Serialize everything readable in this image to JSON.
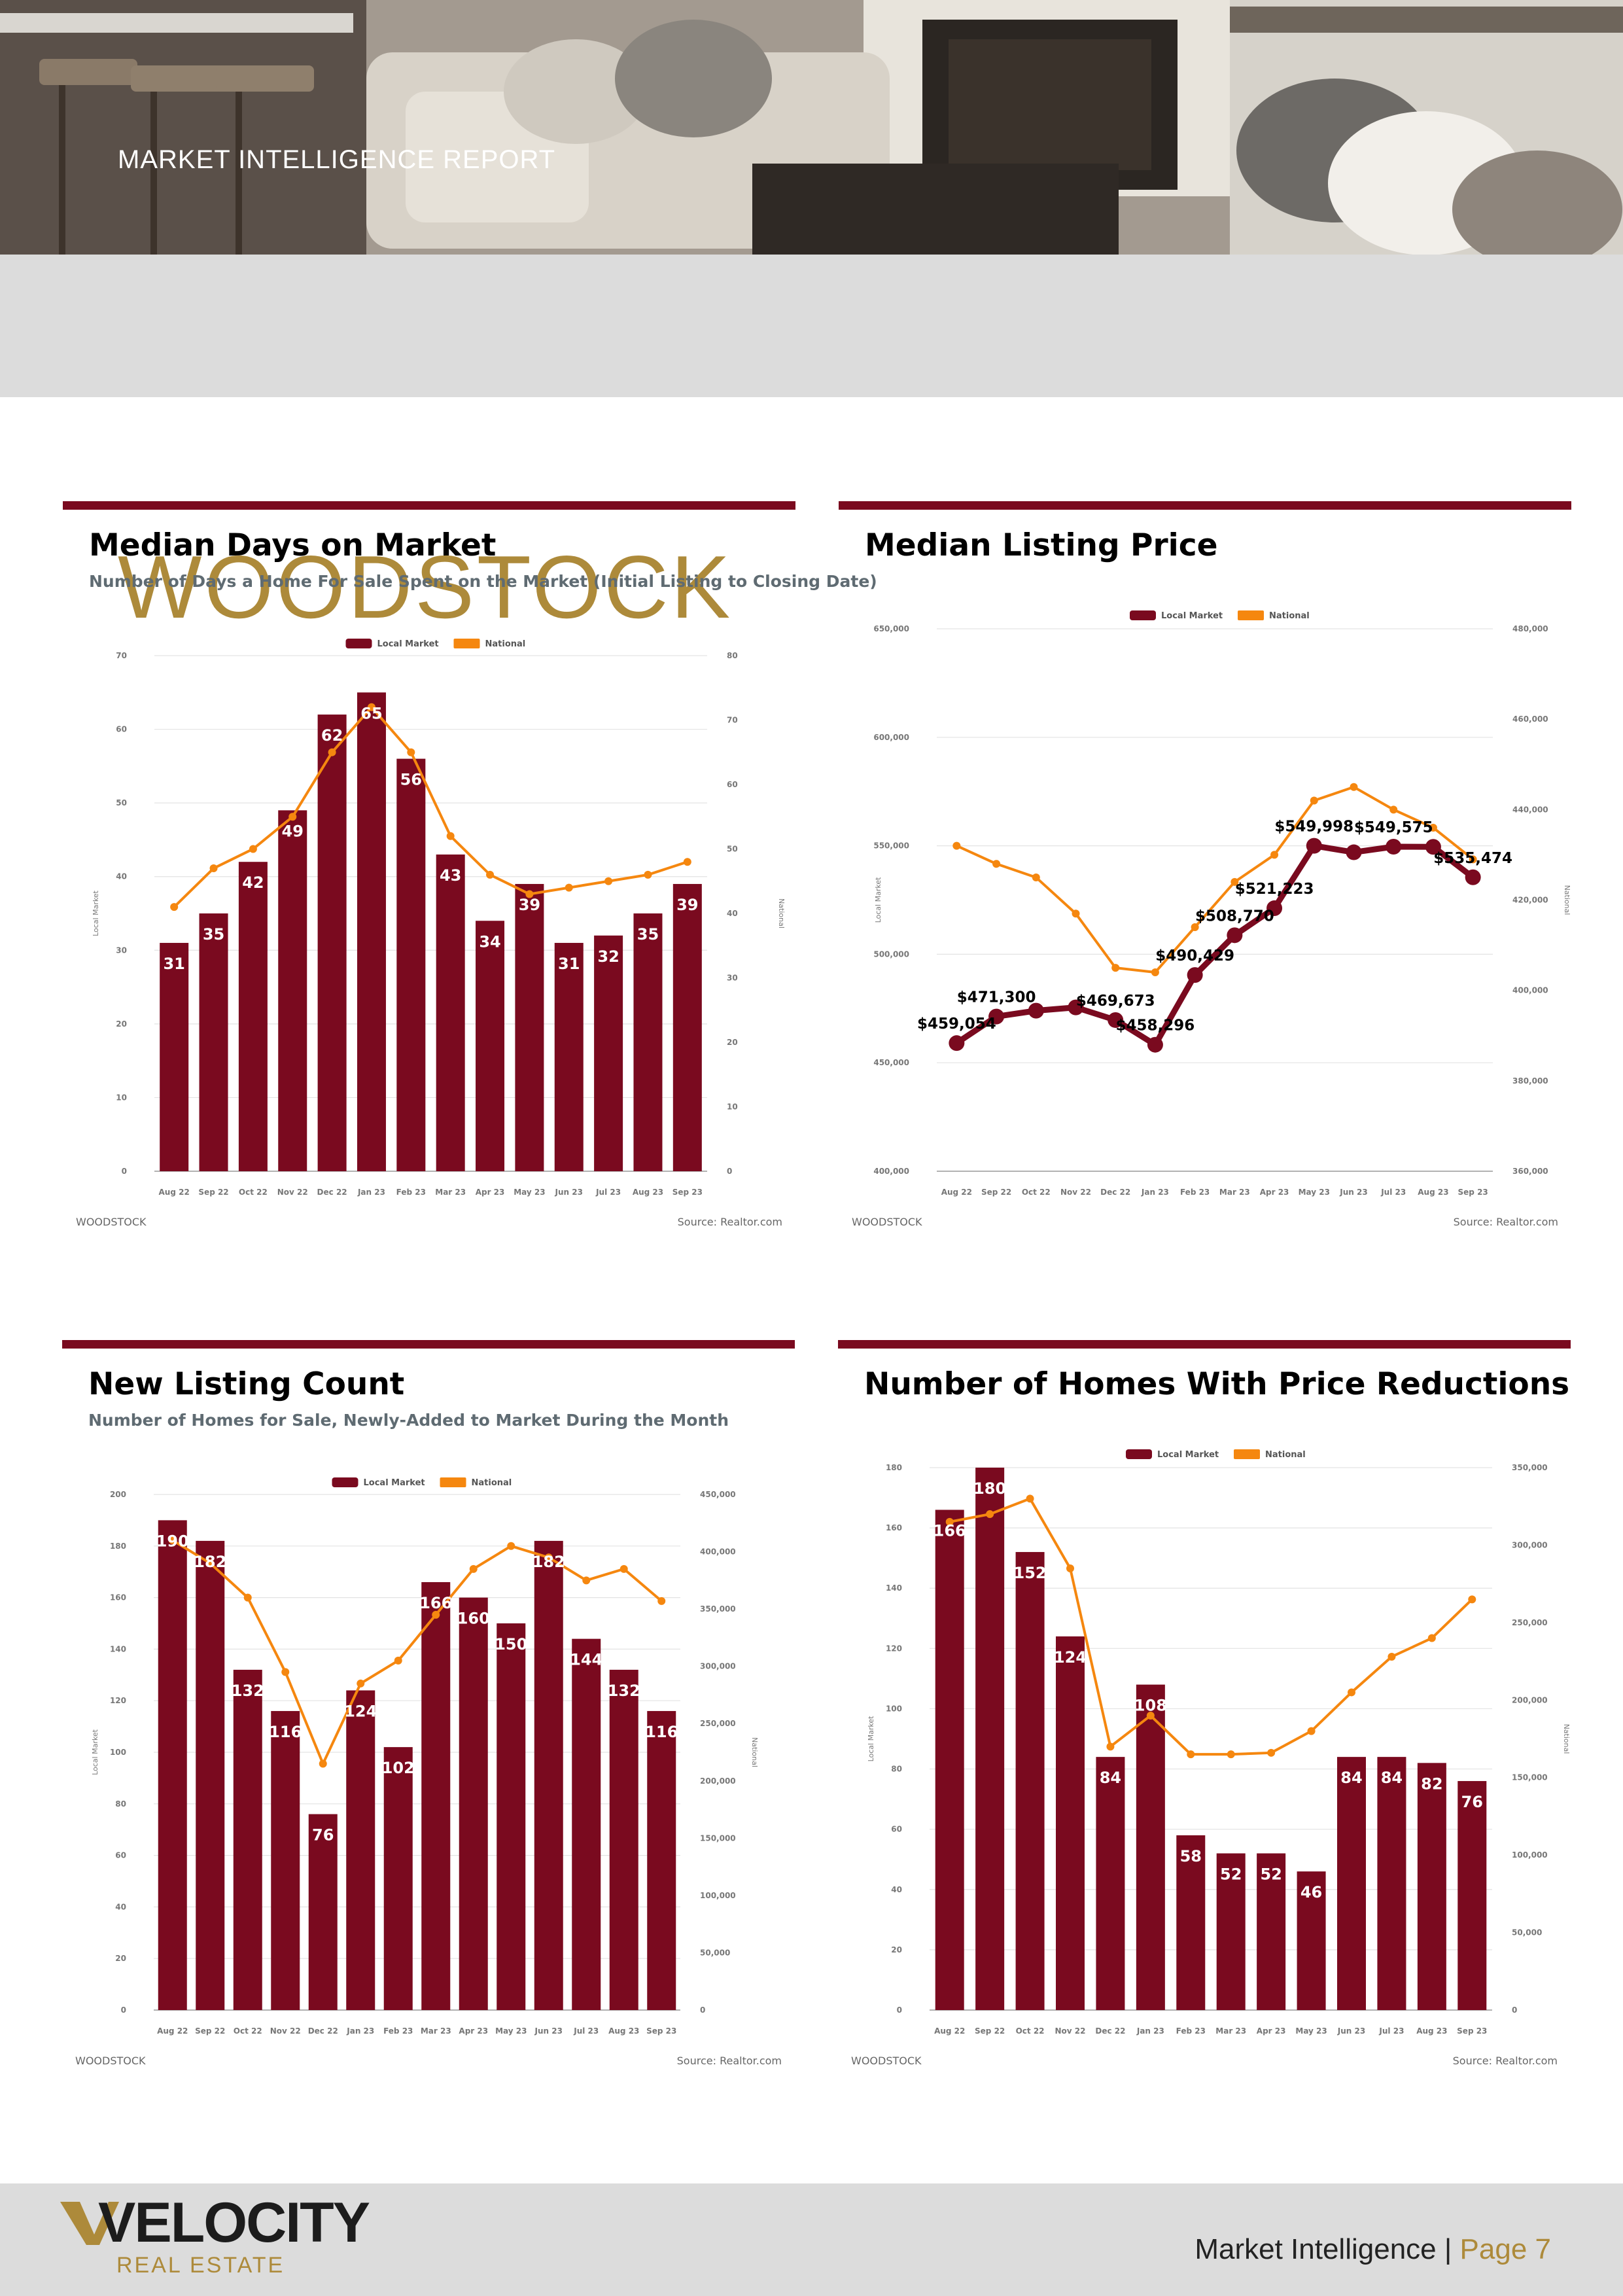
{
  "header": {
    "kicker": "MARKET INTELLIGENCE REPORT",
    "city": "WOODSTOCK"
  },
  "colors": {
    "local": "#7a0a1f",
    "national": "#f5870f",
    "accent": "#ad8a3a",
    "band": "#dcdcdc"
  },
  "legend": {
    "local": "Local Market",
    "national": "National"
  },
  "axis_titles": {
    "left": "Local Market",
    "right": "National"
  },
  "footer_labels": {
    "market": "WOODSTOCK",
    "source": "Source: Realtor.com"
  },
  "brand": {
    "name": "VELOCITY",
    "sub": "REAL ESTATE",
    "page_prefix": "Market Intelligence | ",
    "page": "Page 7"
  },
  "panels": [
    {
      "title": "Median Days on Market",
      "subtitle": "Number of Days a Home For Sale Spent on the Market (Initial Listing to Closing Date)"
    },
    {
      "title": "Median Listing Price",
      "subtitle": ""
    },
    {
      "title": "New Listing Count",
      "subtitle": "Number of Homes for Sale, Newly-Added to Market During the Month"
    },
    {
      "title": "Number of Homes With Price Reductions",
      "subtitle": ""
    }
  ],
  "chart_data": [
    {
      "type": "bar+line",
      "title": "Median Days on Market",
      "categories": [
        "Aug 22",
        "Sep 22",
        "Oct 22",
        "Nov 22",
        "Dec 22",
        "Jan 23",
        "Feb 23",
        "Mar 23",
        "Apr 23",
        "May 23",
        "Jun 23",
        "Jul 23",
        "Aug 23",
        "Sep 23"
      ],
      "local": [
        31,
        35,
        42,
        49,
        62,
        65,
        56,
        43,
        34,
        39,
        31,
        32,
        35,
        39
      ],
      "local_labels": [
        "31",
        "35",
        "42",
        "49",
        "62",
        "65",
        "56",
        "43",
        "34",
        "39",
        "31",
        "32",
        "35",
        "39"
      ],
      "national": [
        41,
        47,
        50,
        55,
        65,
        72,
        65,
        52,
        46,
        43,
        44,
        45,
        46,
        48
      ],
      "left_range": [
        0,
        70
      ],
      "left_ticks": [
        "0",
        "10",
        "20",
        "30",
        "40",
        "50",
        "60",
        "70"
      ],
      "right_range": [
        0,
        80
      ],
      "right_ticks": [
        "0",
        "10",
        "20",
        "30",
        "40",
        "50",
        "60",
        "70",
        "80"
      ]
    },
    {
      "type": "line+line",
      "title": "Median Listing Price",
      "categories": [
        "Aug 22",
        "Sep 22",
        "Oct 22",
        "Nov 22",
        "Dec 22",
        "Jan 23",
        "Feb 23",
        "Mar 23",
        "Apr 23",
        "May 23",
        "Jun 23",
        "Jul 23",
        "Aug 23",
        "Sep 23"
      ],
      "local": [
        459054,
        471300,
        474000,
        475500,
        469673,
        458296,
        490429,
        508770,
        521223,
        549998,
        547000,
        549575,
        549500,
        535474
      ],
      "local_labels": [
        "$459,054",
        "$471,300",
        "",
        "",
        "$469,673",
        "$458,296",
        "$490,429",
        "$508,770",
        "$521,223",
        "$549,998",
        "",
        "$549,575",
        "",
        "$535,474"
      ],
      "national": [
        432000,
        428000,
        425000,
        417000,
        405000,
        404000,
        414000,
        424000,
        430000,
        442000,
        445000,
        440000,
        436000,
        429000
      ],
      "left_range": [
        400000,
        650000
      ],
      "left_ticks": [
        "400,000",
        "450,000",
        "500,000",
        "550,000",
        "600,000",
        "650,000"
      ],
      "right_range": [
        360000,
        480000
      ],
      "right_ticks": [
        "360,000",
        "380,000",
        "400,000",
        "420,000",
        "440,000",
        "460,000",
        "480,000"
      ]
    },
    {
      "type": "bar+line",
      "title": "New Listing Count",
      "categories": [
        "Aug 22",
        "Sep 22",
        "Oct 22",
        "Nov 22",
        "Dec 22",
        "Jan 23",
        "Feb 23",
        "Mar 23",
        "Apr 23",
        "May 23",
        "Jun 23",
        "Jul 23",
        "Aug 23",
        "Sep 23"
      ],
      "local": [
        190,
        182,
        132,
        116,
        76,
        124,
        102,
        166,
        160,
        150,
        182,
        144,
        132,
        116
      ],
      "local_labels": [
        "190",
        "182",
        "132",
        "116",
        "76",
        "124",
        "102",
        "166",
        "160",
        "150",
        "182",
        "144",
        "132",
        "116"
      ],
      "national": [
        410000,
        390000,
        360000,
        295000,
        215000,
        285000,
        305000,
        345000,
        385000,
        405000,
        395000,
        375000,
        385000,
        357000
      ],
      "left_range": [
        0,
        200
      ],
      "left_ticks": [
        "0",
        "20",
        "40",
        "60",
        "80",
        "100",
        "120",
        "140",
        "160",
        "180",
        "200"
      ],
      "right_range": [
        0,
        450000
      ],
      "right_ticks": [
        "0",
        "50,000",
        "100,000",
        "150,000",
        "200,000",
        "250,000",
        "300,000",
        "350,000",
        "400,000",
        "450,000"
      ]
    },
    {
      "type": "bar+line",
      "title": "Number of Homes With Price Reductions",
      "categories": [
        "Aug 22",
        "Sep 22",
        "Oct 22",
        "Nov 22",
        "Dec 22",
        "Jan 23",
        "Feb 23",
        "Mar 23",
        "Apr 23",
        "May 23",
        "Jun 23",
        "Jul 23",
        "Aug 23",
        "Sep 23"
      ],
      "local": [
        166,
        180,
        152,
        124,
        84,
        108,
        58,
        52,
        52,
        46,
        84,
        84,
        82,
        76
      ],
      "local_labels": [
        "166",
        "180",
        "152",
        "124",
        "84",
        "108",
        "58",
        "52",
        "52",
        "46",
        "84",
        "84",
        "82",
        "76"
      ],
      "national": [
        315000,
        320000,
        330000,
        285000,
        170000,
        190000,
        165000,
        165000,
        166000,
        180000,
        205000,
        228000,
        240000,
        265000
      ],
      "left_range": [
        0,
        180
      ],
      "left_ticks": [
        "0",
        "20",
        "40",
        "60",
        "80",
        "100",
        "120",
        "140",
        "160",
        "180"
      ],
      "right_range": [
        0,
        350000
      ],
      "right_ticks": [
        "0",
        "50,000",
        "100,000",
        "150,000",
        "200,000",
        "250,000",
        "300,000",
        "350,000"
      ]
    }
  ]
}
